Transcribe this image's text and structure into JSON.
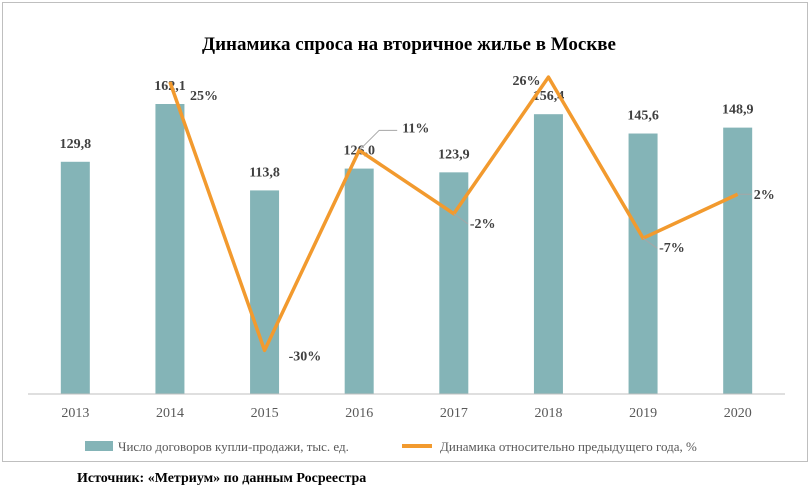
{
  "source_text": "Источник: «Метриум» по данным Росреестра",
  "chart_data": {
    "type": "bar",
    "title": "Динамика спроса на вторичное жилье в Москве",
    "categories": [
      "2013",
      "2014",
      "2015",
      "2016",
      "2017",
      "2018",
      "2019",
      "2020"
    ],
    "series": [
      {
        "name": "Число договоров купли-продажи, тыс. ед.",
        "type": "bar",
        "values": [
          129.8,
          162.1,
          113.8,
          126.0,
          123.9,
          156.4,
          145.6,
          148.9
        ],
        "labels": [
          "129,8",
          "162,1",
          "113,8",
          "126,0",
          "123,9",
          "156,4",
          "145,6",
          "148,9"
        ],
        "color": "#84b4b7"
      },
      {
        "name": "Динамика относительно предыдущего года, %",
        "type": "line",
        "x": [
          "2014",
          "2015",
          "2016",
          "2017",
          "2018",
          "2019",
          "2020"
        ],
        "values": [
          25,
          -30,
          11,
          -2,
          26,
          -7,
          2
        ],
        "labels": [
          "25%",
          "-30%",
          "11%",
          "-2%",
          "26%",
          "-7%",
          "2%"
        ],
        "color": "#f29a2e"
      }
    ],
    "grid": false,
    "legend_position": "bottom"
  }
}
